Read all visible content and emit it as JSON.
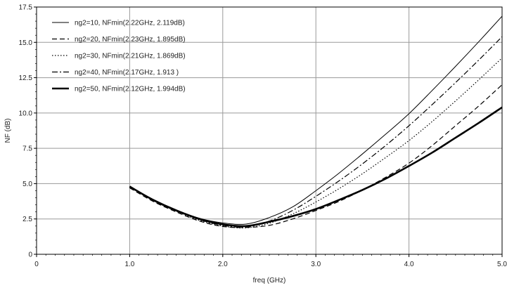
{
  "chart_data": {
    "type": "line",
    "title": "",
    "xlabel": "freq (GHz)",
    "ylabel": "NF (dB)",
    "xlim": [
      0,
      5
    ],
    "ylim": [
      0,
      17.5
    ],
    "xticks": [
      "0",
      "1.0",
      "2.0",
      "3.0",
      "4.0",
      "5.0"
    ],
    "yticks": [
      "0",
      "2.5",
      "5.0",
      "7.5",
      "10.0",
      "12.5",
      "15.0",
      "17.5"
    ],
    "grid": true,
    "legend_position": "top-left",
    "x": [
      1.0,
      1.25,
      1.5,
      1.75,
      2.0,
      2.25,
      2.5,
      2.75,
      3.0,
      3.25,
      3.5,
      3.75,
      4.0,
      4.25,
      4.5,
      4.75,
      5.0
    ],
    "series": [
      {
        "name": "ng2=10, NFmin(2.22GHz, 2.119dB)",
        "style": "solid-thin",
        "values": [
          4.8,
          3.9,
          3.15,
          2.55,
          2.22,
          2.14,
          2.6,
          3.35,
          4.5,
          5.75,
          7.1,
          8.5,
          9.95,
          11.6,
          13.3,
          15.05,
          16.85
        ]
      },
      {
        "name": "ng2=20, NFmin(2.23GHz, 1.895dB)",
        "style": "dashed",
        "values": [
          4.7,
          3.75,
          3.0,
          2.35,
          1.97,
          1.9,
          2.05,
          2.5,
          3.1,
          3.75,
          4.55,
          5.45,
          6.45,
          7.7,
          9.1,
          10.5,
          12.0
        ]
      },
      {
        "name": "ng2=30, NFmin(2.21GHz, 1.869dB)",
        "style": "dotted",
        "values": [
          4.75,
          3.8,
          3.05,
          2.4,
          2.0,
          1.87,
          2.2,
          2.85,
          3.7,
          4.65,
          5.7,
          6.85,
          8.05,
          9.4,
          10.85,
          12.35,
          13.9
        ]
      },
      {
        "name": "ng2=40, NFmin(2.17GHz, 1.913 )",
        "style": "dashdot",
        "values": [
          4.75,
          3.85,
          3.1,
          2.45,
          2.05,
          1.92,
          2.35,
          3.1,
          4.1,
          5.2,
          6.4,
          7.7,
          9.1,
          10.6,
          12.15,
          13.75,
          15.4
        ]
      },
      {
        "name": "ng2=50, NFmin(2.12GHz, 1.994dB)",
        "style": "solid-thick",
        "values": [
          4.8,
          3.85,
          3.1,
          2.5,
          2.12,
          2.0,
          2.3,
          2.7,
          3.2,
          3.85,
          4.55,
          5.35,
          6.25,
          7.2,
          8.25,
          9.3,
          10.4
        ]
      }
    ]
  }
}
